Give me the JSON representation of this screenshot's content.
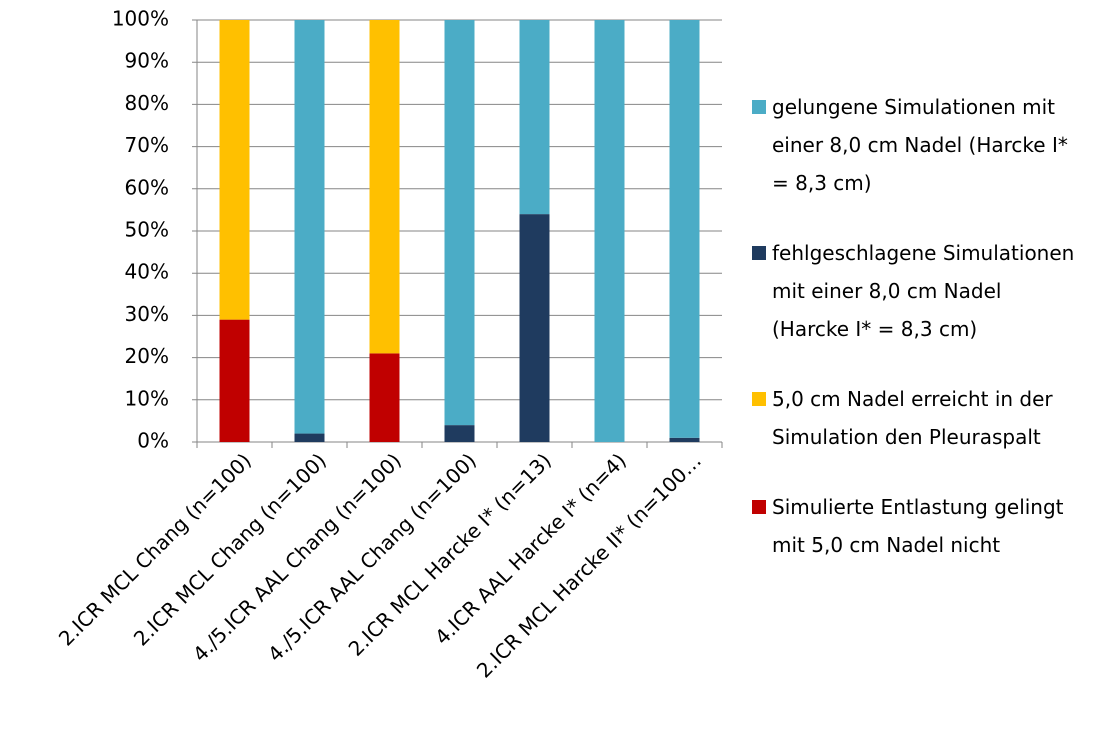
{
  "chart_data": {
    "type": "stacked_bar_100",
    "categories": [
      "2.ICR MCL Chang (n=100)",
      "2.ICR MCL Chang (n=100)",
      "4./5.ICR AAL Chang (n=100)",
      "4./5.ICR AAL Chang (n=100)",
      "2.ICR MCL Harcke I* (n=13)",
      "4.ICR AAL Harcke I* (n=4)",
      "2.ICR MCL Harcke II* (n=100…"
    ],
    "series": [
      {
        "name": "gelungene Simulationen mit einer 8,0 cm Nadel (Harcke I* = 8,3 cm)",
        "color": "#4bacc6",
        "values": [
          0,
          98,
          0,
          96,
          46,
          100,
          99
        ]
      },
      {
        "name": "fehlgeschlagene Simulationen mit einer 8,0 cm Nadel (Harcke I* = 8,3 cm)",
        "color": "#1f3b5f",
        "values": [
          0,
          2,
          0,
          4,
          54,
          0,
          1
        ]
      },
      {
        "name": "5,0 cm Nadel erreicht in der Simulation den Pleuraspalt",
        "color": "#ffc000",
        "values": [
          71,
          0,
          79,
          0,
          0,
          0,
          0
        ]
      },
      {
        "name": "Simulierte Entlastung gelingt mit 5,0 cm Nadel nicht",
        "color": "#c00000",
        "values": [
          29,
          0,
          21,
          0,
          0,
          0,
          0
        ]
      }
    ],
    "ylim": [
      0,
      100
    ],
    "yticks": [
      {
        "value": 0,
        "label": "0%"
      },
      {
        "value": 10,
        "label": "10%"
      },
      {
        "value": 20,
        "label": "20%"
      },
      {
        "value": 30,
        "label": "30%"
      },
      {
        "value": 40,
        "label": "40%"
      },
      {
        "value": 50,
        "label": "50%"
      },
      {
        "value": 60,
        "label": "60%"
      },
      {
        "value": 70,
        "label": "70%"
      },
      {
        "value": 80,
        "label": "80%"
      },
      {
        "value": 90,
        "label": "90%"
      },
      {
        "value": 100,
        "label": "100%"
      }
    ],
    "grid": true,
    "legend": "right"
  }
}
